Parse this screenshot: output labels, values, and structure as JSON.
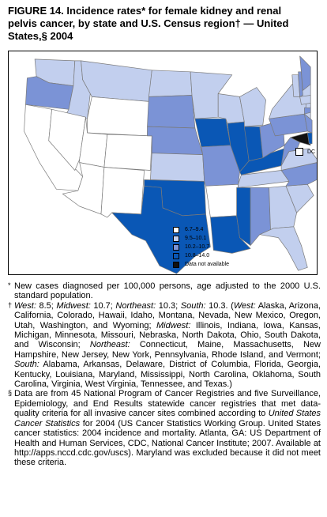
{
  "title": {
    "line1": "FIGURE 14. Incidence rates* for female kidney and renal",
    "line2": "pelvis cancer, by state and U.S. Census region† — United",
    "line3": "States,§ 2004"
  },
  "colors": {
    "rate_6_7_9_4": "#ffffff",
    "rate_9_5_10_1": "#c2cfee",
    "rate_10_2_10_7": "#7b93d6",
    "rate_10_8_14_0": "#0a57b5",
    "not_available": "#111111",
    "border": "#ffffff"
  },
  "legend": {
    "items": [
      {
        "label": "6.7–9.4",
        "color": "#ffffff"
      },
      {
        "label": "9.5–10.1",
        "color": "#c2cfee"
      },
      {
        "label": "10.2–10.7",
        "color": "#7b93d6"
      },
      {
        "label": "10.8–14.0",
        "color": "#0a57b5"
      },
      {
        "label": "Data not available",
        "color": "#111111"
      }
    ]
  },
  "dc": {
    "label": "DC"
  },
  "footnotes": {
    "star": "New cases diagnosed per 100,000 persons, age adjusted to the 2000 U.S. standard population.",
    "dagger_west": "West:",
    "dagger_rates_a": "8.5;",
    "dagger_midwest": "Midwest:",
    "dagger_rates_b": "10.7;",
    "dagger_northeast": "Northeast:",
    "dagger_rates_c": "10.3;",
    "dagger_south": "South:",
    "dagger_rates_d": "10.3. (",
    "dagger_west2": "West:",
    "dagger_west_list": "Alaska, Arizona, California, Colorado, Hawaii, Idaho, Montana, Nevada, New Mexico, Oregon, Utah, Washington, and Wyoming;",
    "dagger_midwest2": "Midwest:",
    "dagger_midwest_list": "Illinois, Indiana, Iowa, Kansas, Michigan, Minnesota, Missouri, Nebraska, North Dakota, Ohio, South Dakota, and Wisconsin;",
    "dagger_northeast2": "Northeast:",
    "dagger_northeast_list": "Connecticut, Maine, Massachusetts, New Hampshire, New Jersey, New York, Pennsylvania, Rhode Island, and Vermont;",
    "dagger_south2": "South:",
    "dagger_south_list": "Alabama, Arkansas, Delaware, District of Columbia, Florida, Georgia, Kentucky, Louisiana, Maryland, Mississippi, North Carolina, Oklahoma, South Carolina, Virginia, West Virginia, Tennessee, and Texas.)",
    "section_a": "Data are from 45 National Program of Cancer Registries and five Surveillance, Epidemiology, and End Results statewide cancer registries that met data-quality criteria for all invasive cancer sites combined according to",
    "section_italic": "United States Cancer Statistics",
    "section_b": "for 2004 (US Cancer Statistics Working Group. United States cancer statistics: 2004 incidence and mortality. Atlanta, GA: US Department of Health and Human Services, CDC, National Cancer Institute; 2007. Available at http://apps.nccd.cdc.gov/uscs). Maryland was excluded because it did not meet these criteria."
  },
  "states": [
    {
      "name": "Washington",
      "class": "rate_9_5_10_1"
    },
    {
      "name": "Oregon",
      "class": "rate_10_2_10_7"
    },
    {
      "name": "California",
      "class": "rate_6_7_9_4"
    },
    {
      "name": "Idaho",
      "class": "rate_9_5_10_1"
    },
    {
      "name": "Nevada",
      "class": "rate_6_7_9_4"
    },
    {
      "name": "Montana",
      "class": "rate_9_5_10_1"
    },
    {
      "name": "Wyoming",
      "class": "rate_6_7_9_4"
    },
    {
      "name": "Utah",
      "class": "rate_6_7_9_4"
    },
    {
      "name": "Arizona",
      "class": "rate_6_7_9_4"
    },
    {
      "name": "Colorado",
      "class": "rate_6_7_9_4"
    },
    {
      "name": "New Mexico",
      "class": "rate_6_7_9_4"
    },
    {
      "name": "North Dakota",
      "class": "rate_9_5_10_1"
    },
    {
      "name": "South Dakota",
      "class": "rate_10_2_10_7"
    },
    {
      "name": "Nebraska",
      "class": "rate_10_2_10_7"
    },
    {
      "name": "Kansas",
      "class": "rate_9_5_10_1"
    },
    {
      "name": "Oklahoma",
      "class": "rate_10_8_14_0"
    },
    {
      "name": "Texas",
      "class": "rate_10_8_14_0"
    },
    {
      "name": "Minnesota",
      "class": "rate_9_5_10_1"
    },
    {
      "name": "Iowa",
      "class": "rate_10_8_14_0"
    },
    {
      "name": "Missouri",
      "class": "rate_10_2_10_7"
    },
    {
      "name": "Arkansas",
      "class": "rate_6_7_9_4"
    },
    {
      "name": "Louisiana",
      "class": "rate_10_8_14_0"
    },
    {
      "name": "Wisconsin",
      "class": "rate_9_5_10_1"
    },
    {
      "name": "Illinois",
      "class": "rate_10_8_14_0"
    },
    {
      "name": "Michigan",
      "class": "rate_9_5_10_1"
    },
    {
      "name": "Indiana",
      "class": "rate_10_8_14_0"
    },
    {
      "name": "Ohio",
      "class": "rate_10_2_10_7"
    },
    {
      "name": "Kentucky",
      "class": "rate_10_8_14_0"
    },
    {
      "name": "Tennessee",
      "class": "rate_9_5_10_1"
    },
    {
      "name": "Mississippi",
      "class": "rate_10_8_14_0"
    },
    {
      "name": "Alabama",
      "class": "rate_10_2_10_7"
    },
    {
      "name": "Georgia",
      "class": "rate_9_5_10_1"
    },
    {
      "name": "Florida",
      "class": "rate_9_5_10_1"
    },
    {
      "name": "South Carolina",
      "class": "rate_9_5_10_1"
    },
    {
      "name": "North Carolina",
      "class": "rate_10_2_10_7"
    },
    {
      "name": "Virginia",
      "class": "rate_9_5_10_1"
    },
    {
      "name": "West Virginia",
      "class": "rate_10_2_10_7"
    },
    {
      "name": "Pennsylvania",
      "class": "rate_10_2_10_7"
    },
    {
      "name": "New York",
      "class": "rate_9_5_10_1"
    },
    {
      "name": "Maryland",
      "class": "not_available"
    },
    {
      "name": "Delaware",
      "class": "rate_10_8_14_0"
    },
    {
      "name": "New Jersey",
      "class": "rate_10_2_10_7"
    },
    {
      "name": "Connecticut",
      "class": "rate_10_2_10_7"
    },
    {
      "name": "Rhode Island",
      "class": "rate_9_5_10_1"
    },
    {
      "name": "Massachusetts",
      "class": "rate_9_5_10_1"
    },
    {
      "name": "Vermont",
      "class": "rate_9_5_10_1"
    },
    {
      "name": "New Hampshire",
      "class": "rate_10_2_10_7"
    },
    {
      "name": "Maine",
      "class": "rate_10_2_10_7"
    },
    {
      "name": "Alaska",
      "class": "rate_9_5_10_1"
    },
    {
      "name": "Hawaii",
      "class": "rate_9_5_10_1"
    },
    {
      "name": "District of Columbia",
      "class": "rate_6_7_9_4"
    }
  ]
}
